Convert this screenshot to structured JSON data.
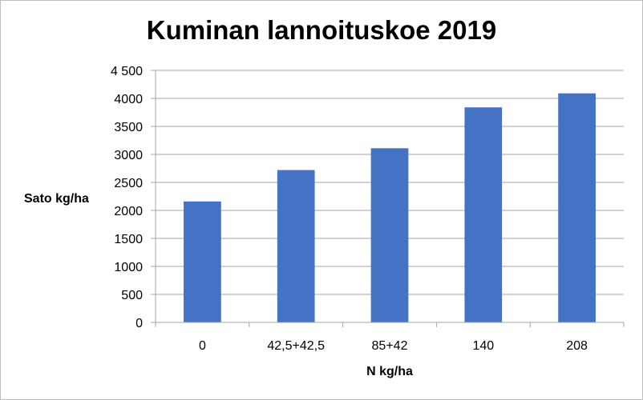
{
  "chart_data": {
    "type": "bar",
    "title": "Kuminan lannoituskoe 2019",
    "xlabel": "N kg/ha",
    "ylabel": "Sato kg/ha",
    "categories": [
      "0",
      "42,5+42,5",
      "85+42",
      "140",
      "208"
    ],
    "values": [
      2160,
      2720,
      3110,
      3840,
      4090
    ],
    "ylim": [
      0,
      4500
    ],
    "yticks": [
      "0",
      "500",
      "1000",
      "1500",
      "2000",
      "2500",
      "3000",
      "3500",
      "4000",
      "4 500"
    ],
    "grid": true,
    "legend": "none",
    "bar_color": "#4472c4",
    "grid_color": "#a6a6a6"
  }
}
